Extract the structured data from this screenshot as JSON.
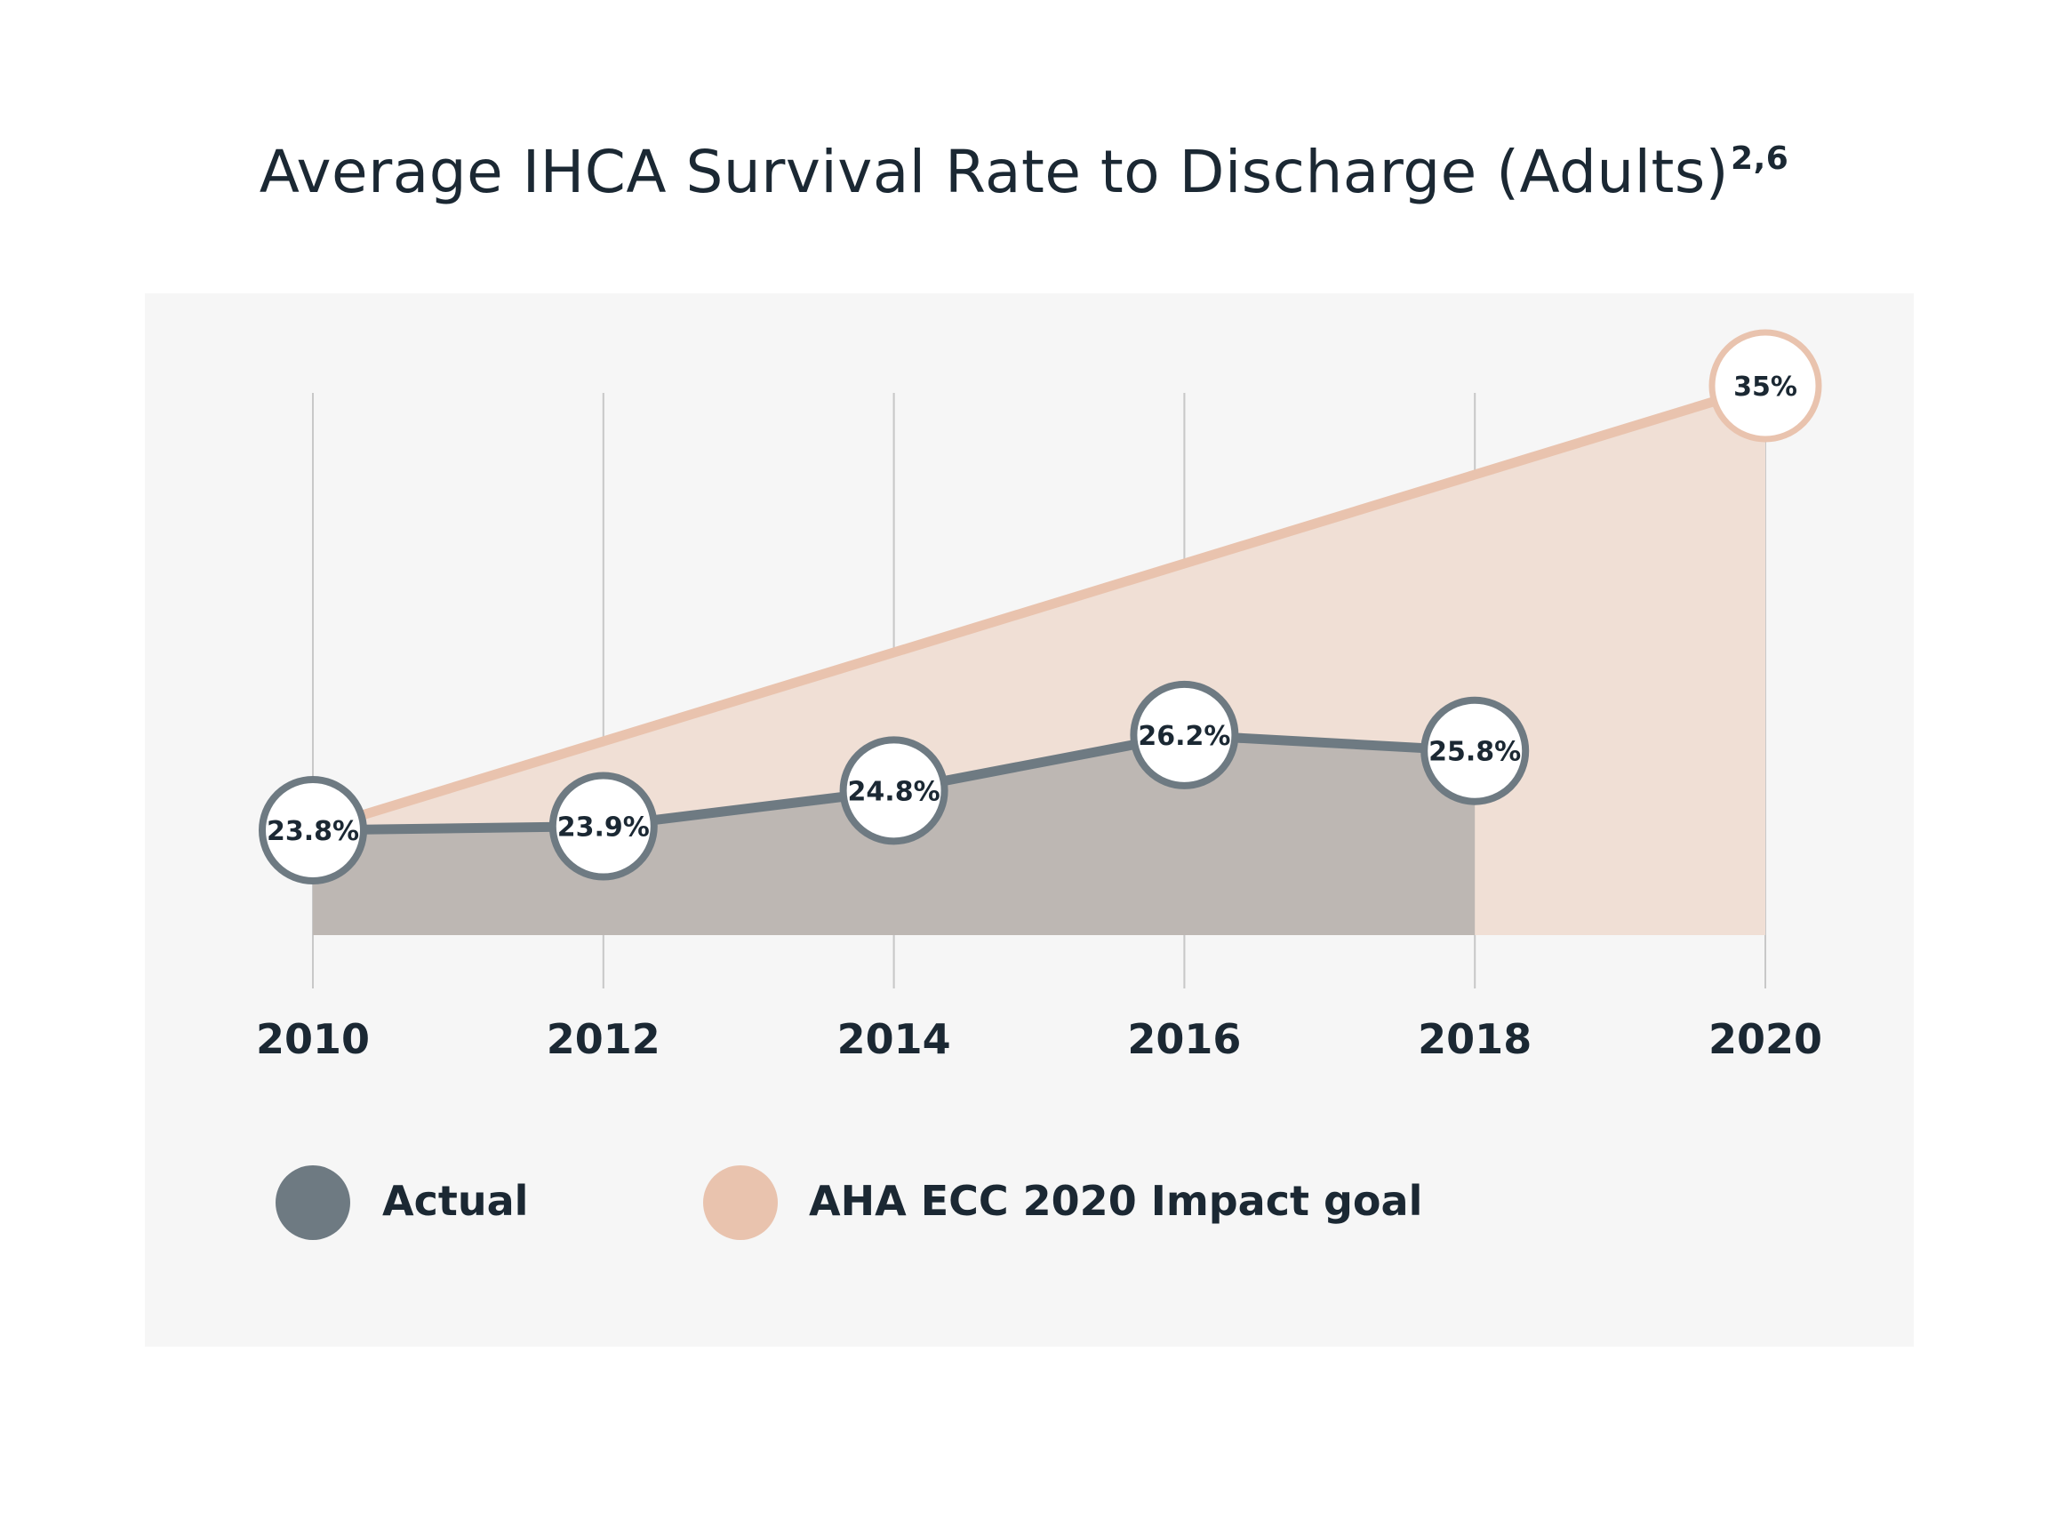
{
  "chart_data": {
    "type": "area",
    "title": "Average IHCA Survival Rate to Discharge (Adults)",
    "title_superscript": "2,6",
    "x": [
      2010,
      2012,
      2014,
      2016,
      2018,
      2020
    ],
    "xlabel": "",
    "ylabel": "",
    "ylim": [
      20,
      35
    ],
    "grid": "vertical lines at each x tick",
    "legend_placement": "bottom-left",
    "series": [
      {
        "name": "Actual",
        "color": "#6e7a82",
        "fill": "#bdb7b3",
        "x": [
          2010,
          2012,
          2014,
          2016,
          2018
        ],
        "values": [
          23.8,
          23.9,
          24.8,
          26.2,
          25.8
        ],
        "labels": [
          "23.8%",
          "23.9%",
          "24.8%",
          "26.2%",
          "25.8%"
        ]
      },
      {
        "name": "AHA ECC 2020 Impact goal",
        "color": "#e9c3ae",
        "fill": "#f0dfd5",
        "x": [
          2010,
          2020
        ],
        "values": [
          23.8,
          35
        ],
        "labels": [
          "35%"
        ]
      }
    ]
  }
}
